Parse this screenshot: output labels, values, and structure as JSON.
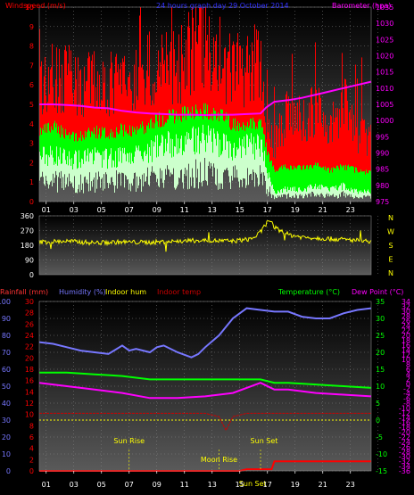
{
  "colors": {
    "wind_max": "#ff0000",
    "wind_avg": "#00ff00",
    "wind_low": "#ccffcc",
    "barometer": "#ff00ff",
    "direction": "#ffff00",
    "humidity": "#7777ff",
    "indoor_hum": "#ffff00",
    "indoor_temp": "#cc0000",
    "temperature": "#00ff00",
    "dew_point": "#ff00ff",
    "rainfall": "#ff0000",
    "axis_text": "#ffffff",
    "grid": "#888888"
  },
  "chart_data": [
    {
      "type": "line",
      "title": "24 hours graph day   29 October 2014",
      "legend": {
        "left": "Windspeed (m/s)",
        "right": "Barometer (hpa)"
      },
      "x_ticks": [
        "01",
        "03",
        "05",
        "07",
        "09",
        "11",
        "13",
        "15",
        "17",
        "19",
        "21",
        "23"
      ],
      "xlim": [
        0,
        24
      ],
      "y_left_ticks": [
        "0",
        "1",
        "2",
        "3",
        "4",
        "5",
        "6",
        "7",
        "8",
        "9",
        "10"
      ],
      "ylim_left": [
        0,
        10
      ],
      "y_right_ticks": [
        "975",
        "980",
        "985",
        "990",
        "995",
        "1000",
        "1005",
        "1010",
        "1015",
        "1020",
        "1025",
        "1030",
        "1035"
      ],
      "ylim_right": [
        975,
        1035
      ],
      "series": [
        {
          "name": "Windspeed (m/s)",
          "axis": "left",
          "x": [
            0,
            1,
            2,
            3,
            4,
            5,
            6,
            7,
            8,
            9,
            10,
            11,
            12,
            13,
            14,
            15,
            16,
            16.5,
            17,
            18,
            19,
            20,
            21,
            22,
            23,
            24
          ],
          "max": [
            6.5,
            7,
            6.8,
            6.2,
            6.8,
            6.5,
            6.7,
            6.6,
            7.5,
            7.8,
            7.5,
            8.5,
            8.8,
            8,
            7.2,
            7.5,
            7.6,
            4,
            3.3,
            5,
            4.5,
            5.2,
            4,
            5.6,
            3.8,
            3.4
          ],
          "avg": [
            3.6,
            3.8,
            3.5,
            3.3,
            3.6,
            3.5,
            3.7,
            3.6,
            4,
            4.3,
            4.4,
            4.6,
            4.7,
            4.4,
            4,
            4,
            4,
            2.5,
            1.6,
            1.8,
            1.7,
            1.9,
            1.6,
            1.8,
            1.6,
            1.5
          ],
          "low": [
            2.3,
            2.4,
            2.2,
            2.1,
            2.3,
            2.2,
            2.4,
            2.3,
            2.6,
            2.9,
            3,
            3.2,
            3.3,
            3,
            2.7,
            2.8,
            2.9,
            1.4,
            0.4,
            0.7,
            0.6,
            0.8,
            0.6,
            0.8,
            0.5,
            0.5
          ]
        },
        {
          "name": "Barometer (hpa)",
          "axis": "right",
          "x": [
            0,
            1,
            2,
            3,
            4,
            5,
            6,
            7,
            8,
            9,
            10,
            11,
            12,
            13,
            14,
            15,
            16,
            16.4,
            17,
            18,
            19,
            20,
            21,
            22,
            23,
            24
          ],
          "y": [
            1005,
            1005,
            1004.8,
            1004.5,
            1004,
            1003.8,
            1003,
            1002.5,
            1002.2,
            1002,
            1001.8,
            1001.8,
            1001.7,
            1001.8,
            1001.8,
            1002,
            1002.2,
            1004,
            1005.8,
            1006.3,
            1007,
            1008,
            1009,
            1010,
            1011,
            1012
          ]
        }
      ]
    },
    {
      "type": "line",
      "y_ticks_left": [
        "360",
        "270",
        "180",
        "90",
        "0"
      ],
      "y_labels_right": [
        "N",
        "W",
        "S",
        "E",
        "N"
      ],
      "ylim": [
        0,
        360
      ],
      "series": [
        {
          "name": "Wind direction",
          "x": [
            0,
            2,
            4,
            6,
            8,
            10,
            12,
            14,
            15,
            15.5,
            16,
            16.3,
            16.6,
            17,
            18,
            19,
            20,
            21,
            22,
            23,
            24
          ],
          "y": [
            200,
            205,
            195,
            200,
            198,
            205,
            210,
            205,
            215,
            225,
            260,
            300,
            335,
            290,
            245,
            230,
            225,
            220,
            215,
            210,
            205
          ]
        }
      ]
    },
    {
      "type": "line",
      "legend": [
        "Rainfall (mm)",
        "Humidity (%)",
        "Indoor hum",
        "Indoor temp",
        "Temperature (°C)",
        "Dew Point (°C)"
      ],
      "x_ticks": [
        "01",
        "03",
        "05",
        "07",
        "09",
        "11",
        "13",
        "15",
        "17",
        "19",
        "21",
        "23"
      ],
      "xlim": [
        0,
        24
      ],
      "y_ticks_humidity": [
        "0",
        "10",
        "20",
        "30",
        "40",
        "50",
        "60",
        "70",
        "80",
        "90",
        "100"
      ],
      "y_ticks_rain": [
        "0",
        "2",
        "4",
        "6",
        "8",
        "10",
        "12",
        "14",
        "16",
        "18",
        "20",
        "22",
        "24",
        "26",
        "28",
        "30"
      ],
      "y_ticks_temp": [
        "-15",
        "-10",
        "-5",
        "0",
        "5",
        "10",
        "15",
        "20",
        "25",
        "30",
        "35"
      ],
      "y_ticks_dew": [
        "-36",
        "-34",
        "-32",
        "-30",
        "-28",
        "-26",
        "-24",
        "-22",
        "-20",
        "-18",
        "-16",
        "-14",
        "-12",
        "-10",
        "-8",
        "-6",
        "-4",
        "-2",
        "0",
        "2",
        "4",
        "6",
        "8",
        "10",
        "12",
        "14",
        "16",
        "18",
        "20",
        "22",
        "24",
        "26",
        "28",
        "30",
        "32",
        "34"
      ],
      "events": [
        {
          "label": "Sun Rise",
          "x": 6.5
        },
        {
          "label": "Moon Rise",
          "x": 13
        },
        {
          "label": "Sun Set",
          "x": 16
        },
        {
          "label": "Sun Set",
          "x": 15.5
        }
      ],
      "series": [
        {
          "name": "Humidity (%)",
          "axis": "humidity",
          "x": [
            0,
            1,
            2,
            3,
            4,
            5,
            6,
            6.5,
            7,
            8,
            8.5,
            9,
            10,
            11,
            11.5,
            12,
            13,
            14,
            15,
            16,
            17,
            18,
            19,
            20,
            21,
            22,
            23,
            24
          ],
          "y": [
            76,
            75,
            73,
            71,
            70,
            69,
            74,
            71,
            72,
            70,
            73,
            74,
            70,
            67,
            69,
            73,
            80,
            90,
            96,
            95,
            94,
            94,
            91,
            90,
            90,
            93,
            95,
            96
          ]
        },
        {
          "name": "Temperature (°C)",
          "axis": "temp",
          "x": [
            0,
            2,
            4,
            6,
            8,
            10,
            12,
            14,
            16,
            17,
            18,
            20,
            22,
            24
          ],
          "y": [
            14,
            14,
            13.5,
            13,
            12,
            12,
            12,
            12,
            12,
            11,
            11,
            10.5,
            10,
            9.5
          ]
        },
        {
          "name": "Dew Point (°C)",
          "axis": "temp",
          "x": [
            0,
            2,
            4,
            6,
            8,
            10,
            12,
            14,
            16,
            17,
            18,
            20,
            22,
            24
          ],
          "y": [
            11,
            10,
            9,
            8,
            6.5,
            6.5,
            7,
            8,
            11,
            9,
            9,
            8,
            7.5,
            7
          ]
        },
        {
          "name": "Indoor temp",
          "axis": "temp",
          "x": [
            0,
            4,
            8,
            12,
            13,
            13.5,
            14,
            15,
            16,
            18,
            20,
            24
          ],
          "y": [
            2,
            2,
            2,
            2,
            1,
            -3,
            1,
            2,
            2,
            2,
            2,
            2
          ]
        },
        {
          "name": "Indoor hum",
          "axis": "humidity",
          "x": [
            0,
            4,
            8,
            12,
            16,
            20,
            24
          ],
          "y": [
            30,
            30,
            30,
            30,
            30,
            30,
            30
          ]
        },
        {
          "name": "Rainfall (mm)",
          "axis": "rain",
          "x": [
            0,
            0.1,
            0.2,
            14.5,
            15,
            15.5,
            16,
            16.8,
            17,
            20,
            24
          ],
          "y": [
            0,
            0,
            0,
            0,
            0.3,
            0.3,
            0.3,
            0.3,
            1.7,
            1.7,
            1.7
          ]
        }
      ]
    }
  ]
}
